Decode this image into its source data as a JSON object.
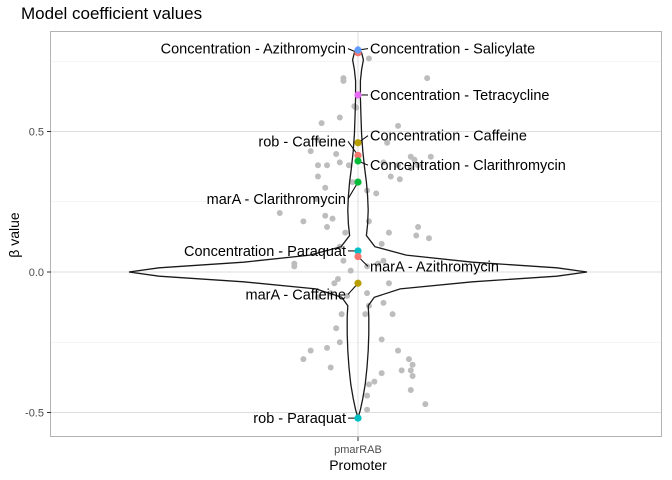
{
  "chart_data": {
    "type": "violin",
    "title": "Model coefficient values",
    "xlabel": "Promoter",
    "ylabel": "β value",
    "categories": [
      "pmarRAB"
    ],
    "ylim": [
      -0.58,
      0.83
    ],
    "yticks": [
      {
        "value": -0.5,
        "label": "-0.5"
      },
      {
        "value": 0.0,
        "label": "0.0"
      },
      {
        "value": 0.5,
        "label": "0.5"
      }
    ],
    "grid": true,
    "background_points_color": "#bdbdbd",
    "violin_outline_color": "#1a1a1a",
    "violin_profile": [
      [
        -0.52,
        0.0
      ],
      [
        -0.49,
        0.004
      ],
      [
        -0.45,
        0.008
      ],
      [
        -0.4,
        0.012
      ],
      [
        -0.34,
        0.015
      ],
      [
        -0.28,
        0.017
      ],
      [
        -0.22,
        0.018
      ],
      [
        -0.16,
        0.018
      ],
      [
        -0.12,
        0.017
      ],
      [
        -0.09,
        0.027
      ],
      [
        -0.06,
        0.07
      ],
      [
        -0.035,
        0.19
      ],
      [
        -0.015,
        0.33
      ],
      [
        0.0,
        0.38
      ],
      [
        0.015,
        0.33
      ],
      [
        0.035,
        0.19
      ],
      [
        0.06,
        0.08
      ],
      [
        0.09,
        0.028
      ],
      [
        0.13,
        0.014
      ],
      [
        0.17,
        0.016
      ],
      [
        0.22,
        0.017
      ],
      [
        0.27,
        0.016
      ],
      [
        0.32,
        0.014
      ],
      [
        0.37,
        0.011
      ],
      [
        0.43,
        0.008
      ],
      [
        0.49,
        0.006
      ],
      [
        0.55,
        0.005
      ],
      [
        0.62,
        0.004
      ],
      [
        0.68,
        0.004
      ],
      [
        0.72,
        0.006
      ],
      [
        0.755,
        0.009
      ],
      [
        0.78,
        0.006
      ],
      [
        0.8,
        0.0
      ]
    ],
    "background_points": [
      {
        "x": -0.04,
        "y": 0.69
      },
      {
        "x": -0.04,
        "y": 0.68
      },
      {
        "x": 0.19,
        "y": 0.69
      },
      {
        "x": 0.03,
        "y": 0.76
      },
      {
        "x": -0.01,
        "y": 0.59
      },
      {
        "x": -0.005,
        "y": 0.585
      },
      {
        "x": -0.05,
        "y": 0.55
      },
      {
        "x": -0.1,
        "y": 0.53
      },
      {
        "x": 0.11,
        "y": 0.52
      },
      {
        "x": -0.11,
        "y": 0.47
      },
      {
        "x": 0.08,
        "y": 0.46
      },
      {
        "x": -0.13,
        "y": 0.43
      },
      {
        "x": -0.06,
        "y": 0.42
      },
      {
        "x": -0.05,
        "y": 0.39
      },
      {
        "x": -0.11,
        "y": 0.38
      },
      {
        "x": -0.025,
        "y": 0.38
      },
      {
        "x": -0.085,
        "y": 0.38
      },
      {
        "x": 0.07,
        "y": 0.39
      },
      {
        "x": 0.145,
        "y": 0.41
      },
      {
        "x": 0.155,
        "y": 0.4
      },
      {
        "x": 0.2,
        "y": 0.41
      },
      {
        "x": 0.11,
        "y": 0.38
      },
      {
        "x": 0.145,
        "y": 0.37
      },
      {
        "x": 0.165,
        "y": 0.38
      },
      {
        "x": 0.09,
        "y": 0.34
      },
      {
        "x": 0.115,
        "y": 0.33
      },
      {
        "x": -0.11,
        "y": 0.34
      },
      {
        "x": -0.015,
        "y": 0.32
      },
      {
        "x": -0.09,
        "y": 0.3
      },
      {
        "x": -0.115,
        "y": 0.26
      },
      {
        "x": 0.025,
        "y": 0.29
      },
      {
        "x": 0.05,
        "y": 0.28
      },
      {
        "x": -0.215,
        "y": 0.21
      },
      {
        "x": -0.09,
        "y": 0.2
      },
      {
        "x": -0.07,
        "y": 0.19
      },
      {
        "x": 0.03,
        "y": 0.18
      },
      {
        "x": -0.15,
        "y": 0.18
      },
      {
        "x": -0.085,
        "y": 0.16
      },
      {
        "x": -0.035,
        "y": 0.14
      },
      {
        "x": 0.085,
        "y": 0.14
      },
      {
        "x": 0.165,
        "y": 0.16
      },
      {
        "x": 0.16,
        "y": 0.13
      },
      {
        "x": 0.195,
        "y": 0.12
      },
      {
        "x": -0.05,
        "y": 0.09
      },
      {
        "x": 0.065,
        "y": 0.1
      },
      {
        "x": -0.175,
        "y": 0.03
      },
      {
        "x": -0.04,
        "y": 0.04
      },
      {
        "x": 0.07,
        "y": 0.04
      },
      {
        "x": 0.055,
        "y": 0.03
      },
      {
        "x": -0.175,
        "y": 0.02
      },
      {
        "x": 0.025,
        "y": 0.02
      },
      {
        "x": -0.02,
        "y": 0.005
      },
      {
        "x": -0.055,
        "y": -0.025
      },
      {
        "x": -0.065,
        "y": -0.04
      },
      {
        "x": 0.085,
        "y": -0.04
      },
      {
        "x": -0.075,
        "y": -0.075
      },
      {
        "x": -0.03,
        "y": -0.085
      },
      {
        "x": 0.025,
        "y": -0.075
      },
      {
        "x": 0.03,
        "y": -0.12
      },
      {
        "x": 0.07,
        "y": -0.11
      },
      {
        "x": -0.11,
        "y": -0.09
      },
      {
        "x": -0.045,
        "y": -0.15
      },
      {
        "x": 0.02,
        "y": -0.15
      },
      {
        "x": 0.095,
        "y": -0.15
      },
      {
        "x": -0.06,
        "y": -0.2
      },
      {
        "x": -0.05,
        "y": -0.25
      },
      {
        "x": 0.065,
        "y": -0.24
      },
      {
        "x": 0.11,
        "y": -0.28
      },
      {
        "x": -0.085,
        "y": -0.27
      },
      {
        "x": -0.15,
        "y": -0.31
      },
      {
        "x": -0.13,
        "y": -0.28
      },
      {
        "x": 0.14,
        "y": -0.31
      },
      {
        "x": 0.15,
        "y": -0.33
      },
      {
        "x": 0.12,
        "y": -0.35
      },
      {
        "x": 0.145,
        "y": -0.35
      },
      {
        "x": 0.065,
        "y": -0.36
      },
      {
        "x": 0.045,
        "y": -0.39
      },
      {
        "x": 0.15,
        "y": -0.37
      },
      {
        "x": -0.075,
        "y": -0.34
      },
      {
        "x": 0.145,
        "y": -0.42
      },
      {
        "x": 0.03,
        "y": -0.4
      },
      {
        "x": 0.025,
        "y": -0.44
      },
      {
        "x": 0.185,
        "y": -0.47
      },
      {
        "x": 0.025,
        "y": -0.49
      }
    ],
    "highlighted_points": [
      {
        "label": "Concentration - Azithromycin",
        "y": 0.78,
        "color": "#f8766d",
        "label_side": "left",
        "label_y": 0.795
      },
      {
        "label": "Concentration - Salicylate",
        "y": 0.79,
        "color": "#619cff",
        "label_side": "right",
        "label_y": 0.795
      },
      {
        "label": "Concentration - Tetracycline",
        "y": 0.63,
        "color": "#e76bf3",
        "label_side": "right",
        "label_y": 0.63
      },
      {
        "label": "Concentration - Caffeine",
        "y": 0.46,
        "color": "#b79f00",
        "label_side": "right",
        "label_y": 0.485
      },
      {
        "label": "rob - Caffeine",
        "y": 0.415,
        "color": "#f8766d",
        "label_side": "left",
        "label_y": 0.465
      },
      {
        "label": "Concentration - Clarithromycin",
        "y": 0.395,
        "color": "#00ba38",
        "label_side": "right",
        "label_y": 0.38
      },
      {
        "label": "marA - Clarithromycin",
        "y": 0.32,
        "color": "#00ba38",
        "label_side": "left",
        "label_y": 0.26
      },
      {
        "label": "Concentration - Paraquat",
        "y": 0.075,
        "color": "#00bfc4",
        "label_side": "left",
        "label_y": 0.075
      },
      {
        "label": "marA - Azithromycin",
        "y": 0.055,
        "color": "#f8766d",
        "label_side": "right",
        "label_y": 0.02
      },
      {
        "label": "marA - Caffeine",
        "y": -0.04,
        "color": "#b79f00",
        "label_side": "left",
        "label_y": -0.08
      },
      {
        "label": "rob - Paraquat",
        "y": -0.52,
        "color": "#00bfc4",
        "label_side": "left",
        "label_y": -0.52
      }
    ]
  }
}
